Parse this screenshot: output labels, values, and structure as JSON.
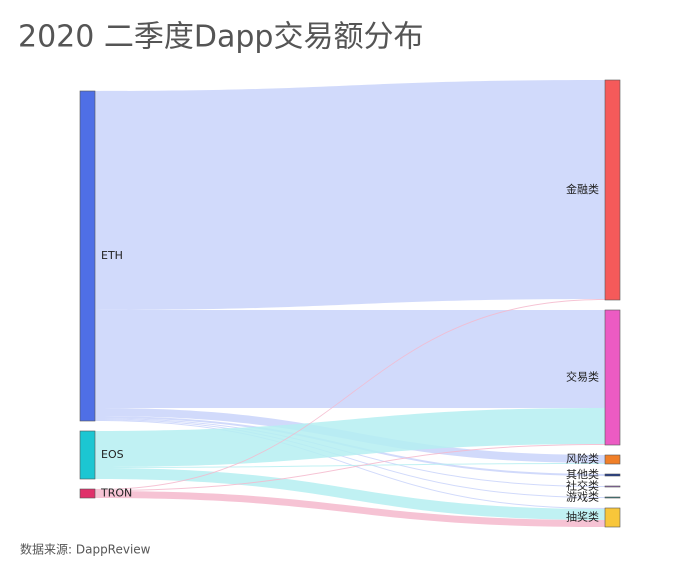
{
  "chart_data": {
    "type": "sankey",
    "title": "2020 二季度Dapp交易额分布",
    "source_note": "数据来源: DappReview",
    "nodes": [
      {
        "name": "ETH",
        "color": "#4f6fe6",
        "link_color": "#c9d3fa"
      },
      {
        "name": "EOS",
        "color": "#1cc6d2",
        "link_color": "#b5eef1"
      },
      {
        "name": "TRON",
        "color": "#e0306a",
        "link_color": "#f5b9cc"
      },
      {
        "name": "金融类",
        "color": "#f55a5a",
        "link_color": "#fcd0d0"
      },
      {
        "name": "交易类",
        "color": "#ec5bc3",
        "link_color": "#f9cdec"
      },
      {
        "name": "风险类",
        "color": "#f07f28",
        "link_color": "#fbd9bf"
      },
      {
        "name": "其他类",
        "color": "#1f3a8a",
        "link_color": "#c0c8e0"
      },
      {
        "name": "社交类",
        "color": "#a86bd4",
        "link_color": "#e5d3f1"
      },
      {
        "name": "游戏类",
        "color": "#2a8a8a",
        "link_color": "#c3e0e0"
      },
      {
        "name": "抽奖类",
        "color": "#f8c63a",
        "link_color": "#fdeec4"
      }
    ],
    "links": [
      {
        "source": "ETH",
        "target": "金融类",
        "value": 219
      },
      {
        "source": "ETH",
        "target": "交易类",
        "value": 98
      },
      {
        "source": "ETH",
        "target": "风险类",
        "value": 8
      },
      {
        "source": "ETH",
        "target": "其他类",
        "value": 2
      },
      {
        "source": "ETH",
        "target": "社交类",
        "value": 1
      },
      {
        "source": "ETH",
        "target": "游戏类",
        "value": 1
      },
      {
        "source": "ETH",
        "target": "抽奖类",
        "value": 1
      },
      {
        "source": "EOS",
        "target": "交易类",
        "value": 36
      },
      {
        "source": "EOS",
        "target": "风险类",
        "value": 1
      },
      {
        "source": "EOS",
        "target": "抽奖类",
        "value": 11
      },
      {
        "source": "TRON",
        "target": "金融类",
        "value": 1
      },
      {
        "source": "TRON",
        "target": "交易类",
        "value": 1
      },
      {
        "source": "TRON",
        "target": "抽奖类",
        "value": 7
      }
    ]
  }
}
